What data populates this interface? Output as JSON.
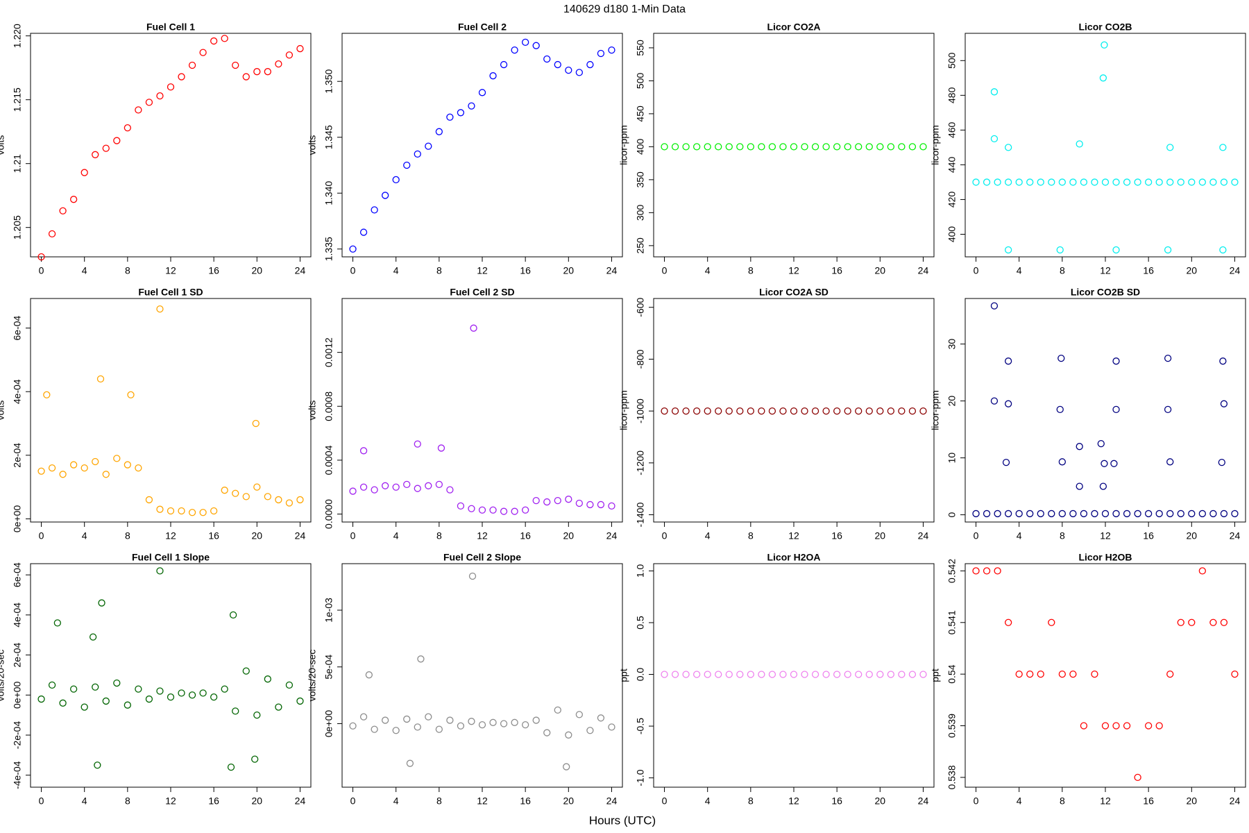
{
  "title": "140629   d180   1-Min Data",
  "xlabel": "Hours (UTC)",
  "chart_data": [
    {
      "type": "scatter",
      "title": "Fuel Cell 1",
      "ylabel": "volts",
      "color": "#ff0000",
      "x": [
        0,
        1,
        2,
        3,
        4,
        5,
        6,
        7,
        8,
        9,
        10,
        11,
        12,
        13,
        14,
        15,
        16,
        17,
        18,
        19,
        20,
        21,
        22,
        23,
        24
      ],
      "values": [
        1.2027,
        1.2045,
        1.2063,
        1.2072,
        1.2093,
        1.2107,
        1.2112,
        1.2118,
        1.2128,
        1.2142,
        1.2148,
        1.2153,
        1.216,
        1.2168,
        1.2177,
        1.2187,
        1.2196,
        1.2198,
        1.2177,
        1.2168,
        1.2172,
        1.2172,
        1.2178,
        1.2185,
        1.219
      ],
      "xlim": [
        -1,
        25
      ],
      "xticks": [
        0,
        4,
        8,
        12,
        16,
        20,
        24
      ],
      "ylim": [
        1.2027,
        1.2202
      ],
      "yticks": [
        1.205,
        1.21,
        1.215,
        {
          "value": 1.22,
          "label": "1.220"
        }
      ]
    },
    {
      "type": "scatter",
      "title": "Fuel Cell 2",
      "ylabel": "volts",
      "color": "#0000ff",
      "x": [
        0,
        1,
        2,
        3,
        4,
        5,
        6,
        7,
        8,
        9,
        10,
        11,
        12,
        13,
        14,
        15,
        16,
        17,
        18,
        19,
        20,
        21,
        22,
        23,
        24
      ],
      "values": [
        1.335,
        1.3365,
        1.3385,
        1.3398,
        1.3412,
        1.3425,
        1.3435,
        1.3442,
        1.3455,
        1.3468,
        1.3472,
        1.3478,
        1.349,
        1.3505,
        1.3515,
        1.3528,
        1.3535,
        1.3532,
        1.352,
        1.3515,
        1.351,
        1.3508,
        1.3515,
        1.3525,
        1.3528
      ],
      "xlim": [
        -1,
        25
      ],
      "xticks": [
        0,
        4,
        8,
        12,
        16,
        20,
        24
      ],
      "ylim": [
        1.3343,
        1.3543
      ],
      "yticks": [
        1.335,
        {
          "value": 1.34,
          "label": "1.340"
        },
        1.345,
        {
          "value": 1.35,
          "label": "1.350"
        }
      ]
    },
    {
      "type": "scatter",
      "title": "Licor CO2A",
      "ylabel": "licor-ppm",
      "color": "#00ee00",
      "x": [
        0,
        1,
        2,
        3,
        4,
        5,
        6,
        7,
        8,
        9,
        10,
        11,
        12,
        13,
        14,
        15,
        16,
        17,
        18,
        19,
        20,
        21,
        22,
        23,
        24
      ],
      "values": [
        400,
        400,
        400,
        400,
        400,
        400,
        400,
        400,
        400,
        400,
        400,
        400,
        400,
        400,
        400,
        400,
        400,
        400,
        400,
        400,
        400,
        400,
        400,
        400,
        400
      ],
      "xlim": [
        -1,
        25
      ],
      "xticks": [
        0,
        4,
        8,
        12,
        16,
        20,
        24
      ],
      "ylim": [
        233,
        572
      ],
      "yticks": [
        250,
        300,
        350,
        400,
        450,
        500,
        550
      ]
    },
    {
      "type": "scatter",
      "title": "Licor CO2B",
      "ylabel": "licor-ppm",
      "color": "#00eeee",
      "x": [
        0,
        1,
        2,
        3,
        4,
        5,
        6,
        7,
        8,
        9,
        10,
        11,
        12,
        13,
        14,
        15,
        16,
        17,
        18,
        19,
        20,
        21,
        22,
        23,
        24,
        1.7,
        1.7,
        3,
        3,
        7.8,
        9.6,
        11.9,
        11.8,
        13,
        17.8,
        18,
        22.9,
        22.9
      ],
      "values": [
        430,
        430,
        430,
        430,
        430,
        430,
        430,
        430,
        430,
        430,
        430,
        430,
        430,
        430,
        430,
        430,
        430,
        430,
        430,
        430,
        430,
        430,
        430,
        430,
        430,
        482,
        455,
        450,
        391,
        391,
        452,
        509,
        490,
        391,
        391,
        450,
        391,
        450
      ],
      "xlim": [
        -1,
        25
      ],
      "xticks": [
        0,
        4,
        8,
        12,
        16,
        20,
        24
      ],
      "ylim": [
        387,
        515.7
      ],
      "yticks": [
        400,
        420,
        440,
        460,
        480,
        500
      ]
    },
    {
      "type": "scatter",
      "title": "Fuel Cell 1 SD",
      "ylabel": "volts",
      "color": "#ffa500",
      "x": [
        0,
        1,
        2,
        3,
        4,
        5,
        6,
        7,
        8,
        9,
        10,
        11,
        12,
        13,
        14,
        15,
        16,
        17,
        18,
        19,
        20,
        21,
        22,
        23,
        24,
        11,
        5.5,
        0.5,
        8.3,
        19.9
      ],
      "values": [
        0.00015,
        0.00016,
        0.00014,
        0.00017,
        0.00016,
        0.00018,
        0.00014,
        0.00019,
        0.00017,
        0.00016,
        6e-05,
        3e-05,
        2.5e-05,
        2.5e-05,
        2e-05,
        2e-05,
        2.5e-05,
        9e-05,
        8e-05,
        7e-05,
        0.0001,
        7e-05,
        6e-05,
        5e-05,
        6e-05,
        0.00066,
        0.00044,
        0.00039,
        0.00039,
        0.0003
      ],
      "xlim": [
        -1,
        25
      ],
      "xticks": [
        0,
        4,
        8,
        12,
        16,
        20,
        24
      ],
      "ylim": [
        -1e-05,
        0.000693
      ],
      "yticks": [
        {
          "value": 0,
          "label": "0e+00"
        },
        {
          "value": 0.0002,
          "label": "2e-04"
        },
        {
          "value": 0.0004,
          "label": "4e-04"
        },
        {
          "value": 0.0006,
          "label": "6e-04"
        }
      ]
    },
    {
      "type": "scatter",
      "title": "Fuel Cell 2 SD",
      "ylabel": "volts",
      "color": "#a020f0",
      "x": [
        0,
        1,
        2,
        3,
        4,
        5,
        6,
        7,
        8,
        9,
        10,
        11,
        12,
        13,
        14,
        15,
        16,
        17,
        18,
        19,
        20,
        21,
        22,
        23,
        24,
        11.2,
        6,
        8.2,
        1
      ],
      "values": [
        0.00017,
        0.0002,
        0.00018,
        0.00021,
        0.0002,
        0.00022,
        0.00019,
        0.00021,
        0.00022,
        0.00018,
        6e-05,
        4e-05,
        3e-05,
        3e-05,
        2e-05,
        2e-05,
        3e-05,
        0.0001,
        9e-05,
        0.0001,
        0.00011,
        8e-05,
        7e-05,
        7e-05,
        6e-05,
        0.00138,
        0.00052,
        0.00049,
        0.00047
      ],
      "xlim": [
        -1,
        25
      ],
      "xticks": [
        0,
        4,
        8,
        12,
        16,
        20,
        24
      ],
      "ylim": [
        -5.9e-05,
        0.0016
      ],
      "yticks": [
        {
          "value": 0,
          "label": "0.0000"
        },
        {
          "value": 0.0004,
          "label": "0.0004"
        },
        {
          "value": 0.0008,
          "label": "0.0008"
        },
        {
          "value": 0.0012,
          "label": "0.0012"
        }
      ]
    },
    {
      "type": "scatter",
      "title": "Licor CO2A SD",
      "ylabel": "licor-ppm",
      "color": "#8b0000",
      "x": [
        0,
        1,
        2,
        3,
        4,
        5,
        6,
        7,
        8,
        9,
        10,
        11,
        12,
        13,
        14,
        15,
        16,
        17,
        18,
        19,
        20,
        21,
        22,
        23,
        24
      ],
      "values": [
        -1000,
        -1000,
        -1000,
        -1000,
        -1000,
        -1000,
        -1000,
        -1000,
        -1000,
        -1000,
        -1000,
        -1000,
        -1000,
        -1000,
        -1000,
        -1000,
        -1000,
        -1000,
        -1000,
        -1000,
        -1000,
        -1000,
        -1000,
        -1000,
        -1000
      ],
      "xlim": [
        -1,
        25
      ],
      "xticks": [
        0,
        4,
        8,
        12,
        16,
        20,
        24
      ],
      "ylim": [
        -1428,
        -566
      ],
      "yticks": [
        -1400,
        -1200,
        -1000,
        -800,
        -600
      ]
    },
    {
      "type": "scatter",
      "title": "Licor CO2B SD",
      "ylabel": "licor-ppm",
      "color": "#000080",
      "x": [
        0,
        1,
        2,
        3,
        4,
        5,
        6,
        7,
        8,
        9,
        10,
        11,
        12,
        13,
        14,
        15,
        16,
        17,
        18,
        19,
        20,
        21,
        22,
        23,
        24,
        1.7,
        1.7,
        3,
        3,
        2.8,
        7.9,
        7.8,
        8,
        9.6,
        9.6,
        11.6,
        11.9,
        11.8,
        13,
        13,
        12.8,
        17.8,
        17.8,
        18,
        22.9,
        23,
        22.8
      ],
      "values": [
        0.2,
        0.2,
        0.2,
        0.2,
        0.2,
        0.2,
        0.2,
        0.2,
        0.2,
        0.2,
        0.2,
        0.2,
        0.2,
        0.2,
        0.2,
        0.2,
        0.2,
        0.2,
        0.2,
        0.2,
        0.2,
        0.2,
        0.2,
        0.2,
        0.2,
        36.7,
        20,
        27,
        19.5,
        9.2,
        27.5,
        18.5,
        9.3,
        12,
        5,
        12.5,
        9,
        5,
        27,
        18.5,
        9,
        27.5,
        18.5,
        9.3,
        27,
        19.5,
        9.2
      ],
      "xlim": [
        -1,
        25
      ],
      "xticks": [
        0,
        4,
        8,
        12,
        16,
        20,
        24
      ],
      "ylim": [
        -1.27,
        38
      ],
      "yticks": [
        0,
        10,
        20,
        30
      ]
    },
    {
      "type": "scatter",
      "title": "Fuel Cell 1 Slope",
      "ylabel": "volts/20-sec",
      "color": "#006400",
      "x": [
        0,
        1,
        2,
        3,
        4,
        5,
        6,
        7,
        8,
        9,
        10,
        11,
        12,
        13,
        14,
        15,
        16,
        17,
        18,
        19,
        20,
        21,
        22,
        23,
        24,
        11,
        5.6,
        17.8,
        1.5,
        4.8,
        5.2,
        17.6,
        19.8
      ],
      "values": [
        -2e-05,
        5e-05,
        -4e-05,
        3e-05,
        -6e-05,
        4e-05,
        -3e-05,
        6e-05,
        -5e-05,
        3e-05,
        -2e-05,
        2e-05,
        -1e-05,
        1e-05,
        0,
        1e-05,
        -1e-05,
        3e-05,
        -8e-05,
        0.00012,
        -0.0001,
        8e-05,
        -6e-05,
        5e-05,
        -3e-05,
        0.00062,
        0.00046,
        0.0004,
        0.00036,
        0.00029,
        -0.00035,
        -0.00036,
        -0.00032
      ],
      "xlim": [
        -1,
        25
      ],
      "xticks": [
        0,
        4,
        8,
        12,
        16,
        20,
        24
      ],
      "ylim": [
        -0.00046,
        0.000656
      ],
      "yticks": [
        {
          "value": -0.0004,
          "label": "-4e-04"
        },
        {
          "value": -0.0002,
          "label": "-2e-04"
        },
        {
          "value": 0,
          "label": "0e+00"
        },
        {
          "value": 0.0002,
          "label": "2e-04"
        },
        {
          "value": 0.0004,
          "label": "4e-04"
        },
        {
          "value": 0.0006,
          "label": "6e-04"
        }
      ]
    },
    {
      "type": "scatter",
      "title": "Fuel Cell 2 Slope",
      "ylabel": "volts/20-sec",
      "color": "#8c8c8c",
      "x": [
        0,
        1,
        2,
        3,
        4,
        5,
        6,
        7,
        8,
        9,
        10,
        11,
        12,
        13,
        14,
        15,
        16,
        17,
        18,
        19,
        20,
        21,
        22,
        23,
        24,
        11.1,
        6.3,
        1.5,
        5.3,
        19.8
      ],
      "values": [
        -2e-05,
        6e-05,
        -5e-05,
        3e-05,
        -6e-05,
        4e-05,
        -3e-05,
        6e-05,
        -5e-05,
        3e-05,
        -2e-05,
        2e-05,
        -1e-05,
        1e-05,
        0,
        1e-05,
        -1e-05,
        3e-05,
        -8e-05,
        0.00012,
        -0.0001,
        8e-05,
        -6e-05,
        5e-05,
        -3e-05,
        0.0013,
        0.00057,
        0.00043,
        -0.00035,
        -0.00038
      ],
      "xlim": [
        -1,
        25
      ],
      "xticks": [
        0,
        4,
        8,
        12,
        16,
        20,
        24
      ],
      "ylim": [
        -0.00056,
        0.00141
      ],
      "yticks": [
        {
          "value": 0,
          "label": "0e+00"
        },
        {
          "value": 0.0005,
          "label": "5e-04"
        },
        {
          "value": 0.001,
          "label": "1e-03"
        }
      ]
    },
    {
      "type": "scatter",
      "title": "Licor H2OA",
      "ylabel": "ppt",
      "color": "#ee82ee",
      "x": [
        0,
        1,
        2,
        3,
        4,
        5,
        6,
        7,
        8,
        9,
        10,
        11,
        12,
        13,
        14,
        15,
        16,
        17,
        18,
        19,
        20,
        21,
        22,
        23,
        24
      ],
      "values": [
        0,
        0,
        0,
        0,
        0,
        0,
        0,
        0,
        0,
        0,
        0,
        0,
        0,
        0,
        0,
        0,
        0,
        0,
        0,
        0,
        0,
        0,
        0,
        0,
        0
      ],
      "xlim": [
        -1,
        25
      ],
      "xticks": [
        0,
        4,
        8,
        12,
        16,
        20,
        24
      ],
      "ylim": [
        -1.09,
        1.07
      ],
      "yticks": [
        {
          "value": -1,
          "label": "-1.0"
        },
        -0.5,
        {
          "value": 0,
          "label": "0.0"
        },
        0.5,
        {
          "value": 1,
          "label": "1.0"
        }
      ]
    },
    {
      "type": "scatter",
      "title": "Licor H2OB",
      "ylabel": "ppt",
      "color": "#ff0000",
      "x": [
        0,
        1,
        2,
        3,
        4,
        5,
        6,
        7,
        8,
        9,
        10,
        11,
        12,
        13,
        14,
        15,
        16,
        17,
        18,
        19,
        20,
        21,
        22,
        23,
        24
      ],
      "values": [
        0.542,
        0.542,
        0.542,
        0.541,
        0.54,
        0.54,
        0.54,
        0.541,
        0.54,
        0.54,
        0.539,
        0.54,
        0.539,
        0.539,
        0.539,
        0.538,
        0.539,
        0.539,
        0.54,
        0.541,
        0.541,
        0.542,
        0.541,
        0.541,
        0.54
      ],
      "xlim": [
        -1,
        25
      ],
      "xticks": [
        0,
        4,
        8,
        12,
        16,
        20,
        24
      ],
      "ylim": [
        0.53781,
        0.54214
      ],
      "yticks": [
        0.538,
        0.539,
        0.54,
        0.541,
        0.542
      ]
    }
  ]
}
